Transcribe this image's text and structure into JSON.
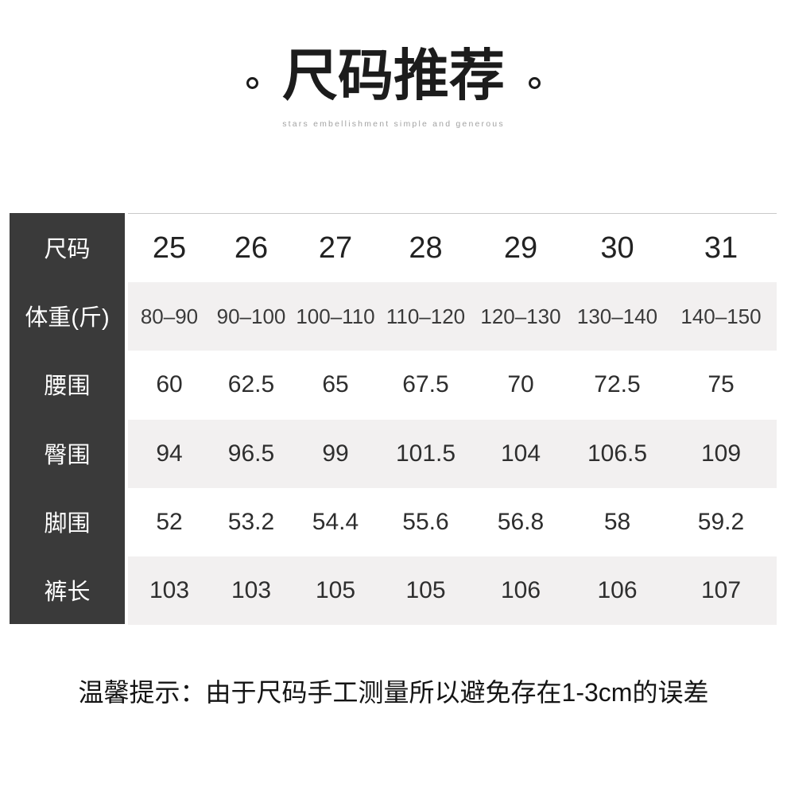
{
  "header": {
    "title": "尺码推荐",
    "subtitle": "stars embellishment simple and generous"
  },
  "colors": {
    "header_dark": "#3a3a3a",
    "row_alt": "#f2f0f0",
    "title_color": "#1c1c1c",
    "subtitle_color": "#a3a3a3",
    "cell_text": "#2e2e2e"
  },
  "note": "温馨提示：由于尺码手工测量所以避免存在1-3cm的误差",
  "chart_data": {
    "type": "table",
    "title": "尺码推荐",
    "subtitle": "stars embellishment simple and generous",
    "columns": [
      "25",
      "26",
      "27",
      "28",
      "29",
      "30",
      "31"
    ],
    "rows": [
      {
        "label": "尺码",
        "values": [
          "25",
          "26",
          "27",
          "28",
          "29",
          "30",
          "31"
        ]
      },
      {
        "label": "体重(斤)",
        "values": [
          "80–90",
          "90–100",
          "100–110",
          "110–120",
          "120–130",
          "130–140",
          "140–150"
        ]
      },
      {
        "label": "腰围",
        "values": [
          "60",
          "62.5",
          "65",
          "67.5",
          "70",
          "72.5",
          "75"
        ]
      },
      {
        "label": "臀围",
        "values": [
          "94",
          "96.5",
          "99",
          "101.5",
          "104",
          "106.5",
          "109"
        ]
      },
      {
        "label": "脚围",
        "values": [
          "52",
          "53.2",
          "54.4",
          "55.6",
          "56.8",
          "58",
          "59.2"
        ]
      },
      {
        "label": "裤长",
        "values": [
          "103",
          "103",
          "105",
          "105",
          "106",
          "106",
          "107"
        ]
      }
    ],
    "note": "温馨提示：由于尺码手工测量所以避免存在1-3cm的误差"
  }
}
